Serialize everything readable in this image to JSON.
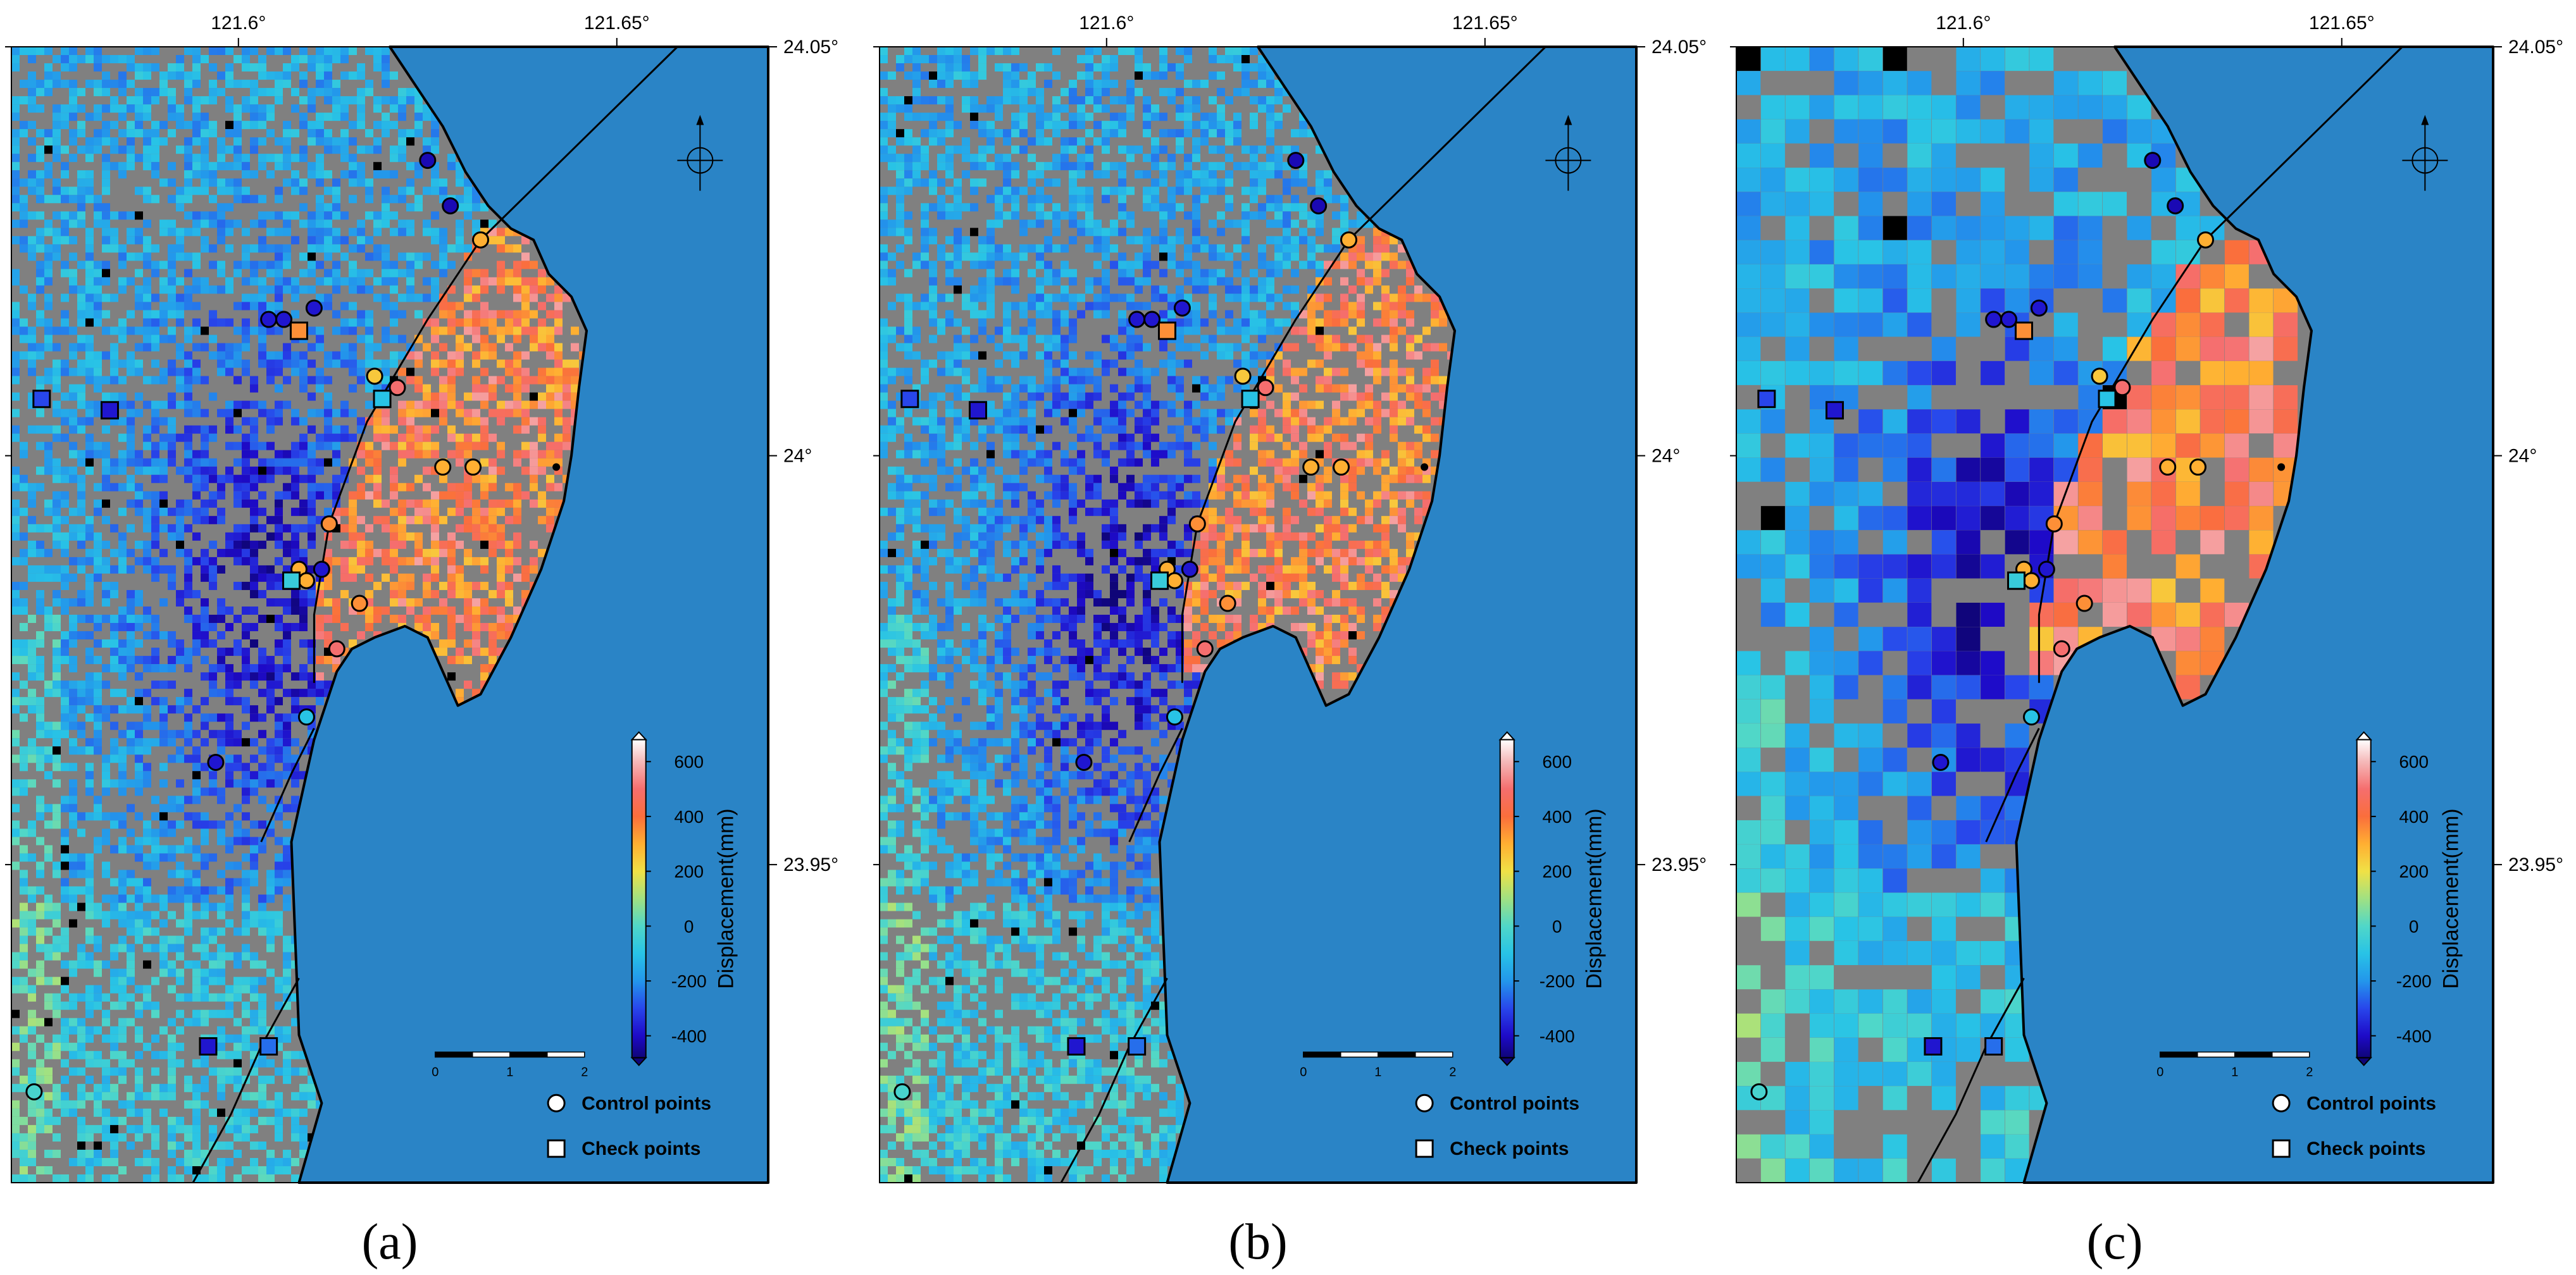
{
  "figure": {
    "panels": [
      {
        "id": "a",
        "caption": "(a)",
        "seed": 11,
        "resolution": "fine"
      },
      {
        "id": "b",
        "caption": "(b)",
        "seed": 29,
        "resolution": "fine"
      },
      {
        "id": "c",
        "caption": "(c)",
        "seed": 47,
        "resolution": "coarse"
      }
    ],
    "lon_ticks": [
      "121.6°",
      "121.65°"
    ],
    "lat_ticks": [
      "24.05°",
      "24°",
      "23.95°"
    ],
    "colorbar": {
      "title": "Displacement(mm)",
      "tick_labels": [
        "600",
        "400",
        "200",
        "0",
        "-200",
        "-400"
      ],
      "tick_values": [
        600,
        400,
        200,
        0,
        -200,
        -400
      ],
      "min": -480,
      "max": 680
    },
    "scalebar": {
      "tick_labels": [
        "0",
        "1",
        "2"
      ]
    },
    "legend": {
      "control_label": "Control points",
      "check_label": "Check points"
    },
    "colors": {
      "sea": "#2a84c6",
      "land": "#808080",
      "coastline": "#000000",
      "fault": "#000000"
    },
    "marker_values": {
      "control_points": [
        -420,
        -420,
        -380,
        -380,
        -380,
        250,
        500,
        300,
        300,
        300,
        350,
        350,
        500,
        300,
        300,
        -380,
        -100,
        -380,
        -20
      ],
      "check_points": [
        -300,
        -380,
        350,
        -100,
        -60,
        -380,
        -250,
        330
      ]
    }
  }
}
